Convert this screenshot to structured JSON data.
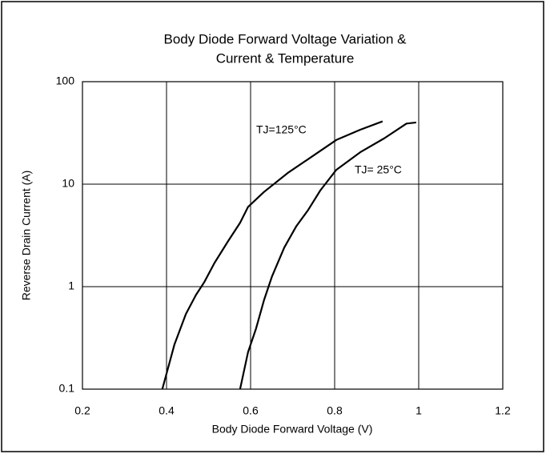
{
  "chart_data": {
    "type": "line",
    "title": [
      "Body Diode Forward Voltage Variation &",
      "Current & Temperature"
    ],
    "x_label": "Body Diode Forward Voltage (V)",
    "y_label": "Reverse Drain Current (A)",
    "xlim": [
      0.2,
      1.2
    ],
    "xticks": [
      0.2,
      0.4,
      0.6,
      0.8,
      1,
      1.2
    ],
    "ylim": [
      0.1,
      100
    ],
    "yticks": [
      0.1,
      1,
      10,
      100
    ],
    "log_y": true,
    "grid": true,
    "series": [
      {
        "name": "TJ=125°C",
        "color": "#000000",
        "x": [
          0.39,
          0.419,
          0.446,
          0.47,
          0.49,
          0.514,
          0.547,
          0.575,
          0.594,
          0.632,
          0.69,
          0.747,
          0.804,
          0.861,
          0.914
        ],
        "values": [
          0.1,
          0.274,
          0.54,
          0.83,
          1.11,
          1.7,
          2.8,
          4.2,
          6.0,
          8.4,
          13,
          18.7,
          27,
          34,
          41
        ]
      },
      {
        "name": "TJ= 25°C",
        "color": "#000000",
        "x": [
          0.575,
          0.594,
          0.613,
          0.632,
          0.651,
          0.68,
          0.709,
          0.737,
          0.766,
          0.804,
          0.861,
          0.918,
          0.971,
          0.994
        ],
        "values": [
          0.1,
          0.23,
          0.39,
          0.74,
          1.26,
          2.4,
          3.9,
          5.6,
          8.7,
          13.8,
          20.5,
          28,
          39,
          40
        ]
      }
    ]
  }
}
